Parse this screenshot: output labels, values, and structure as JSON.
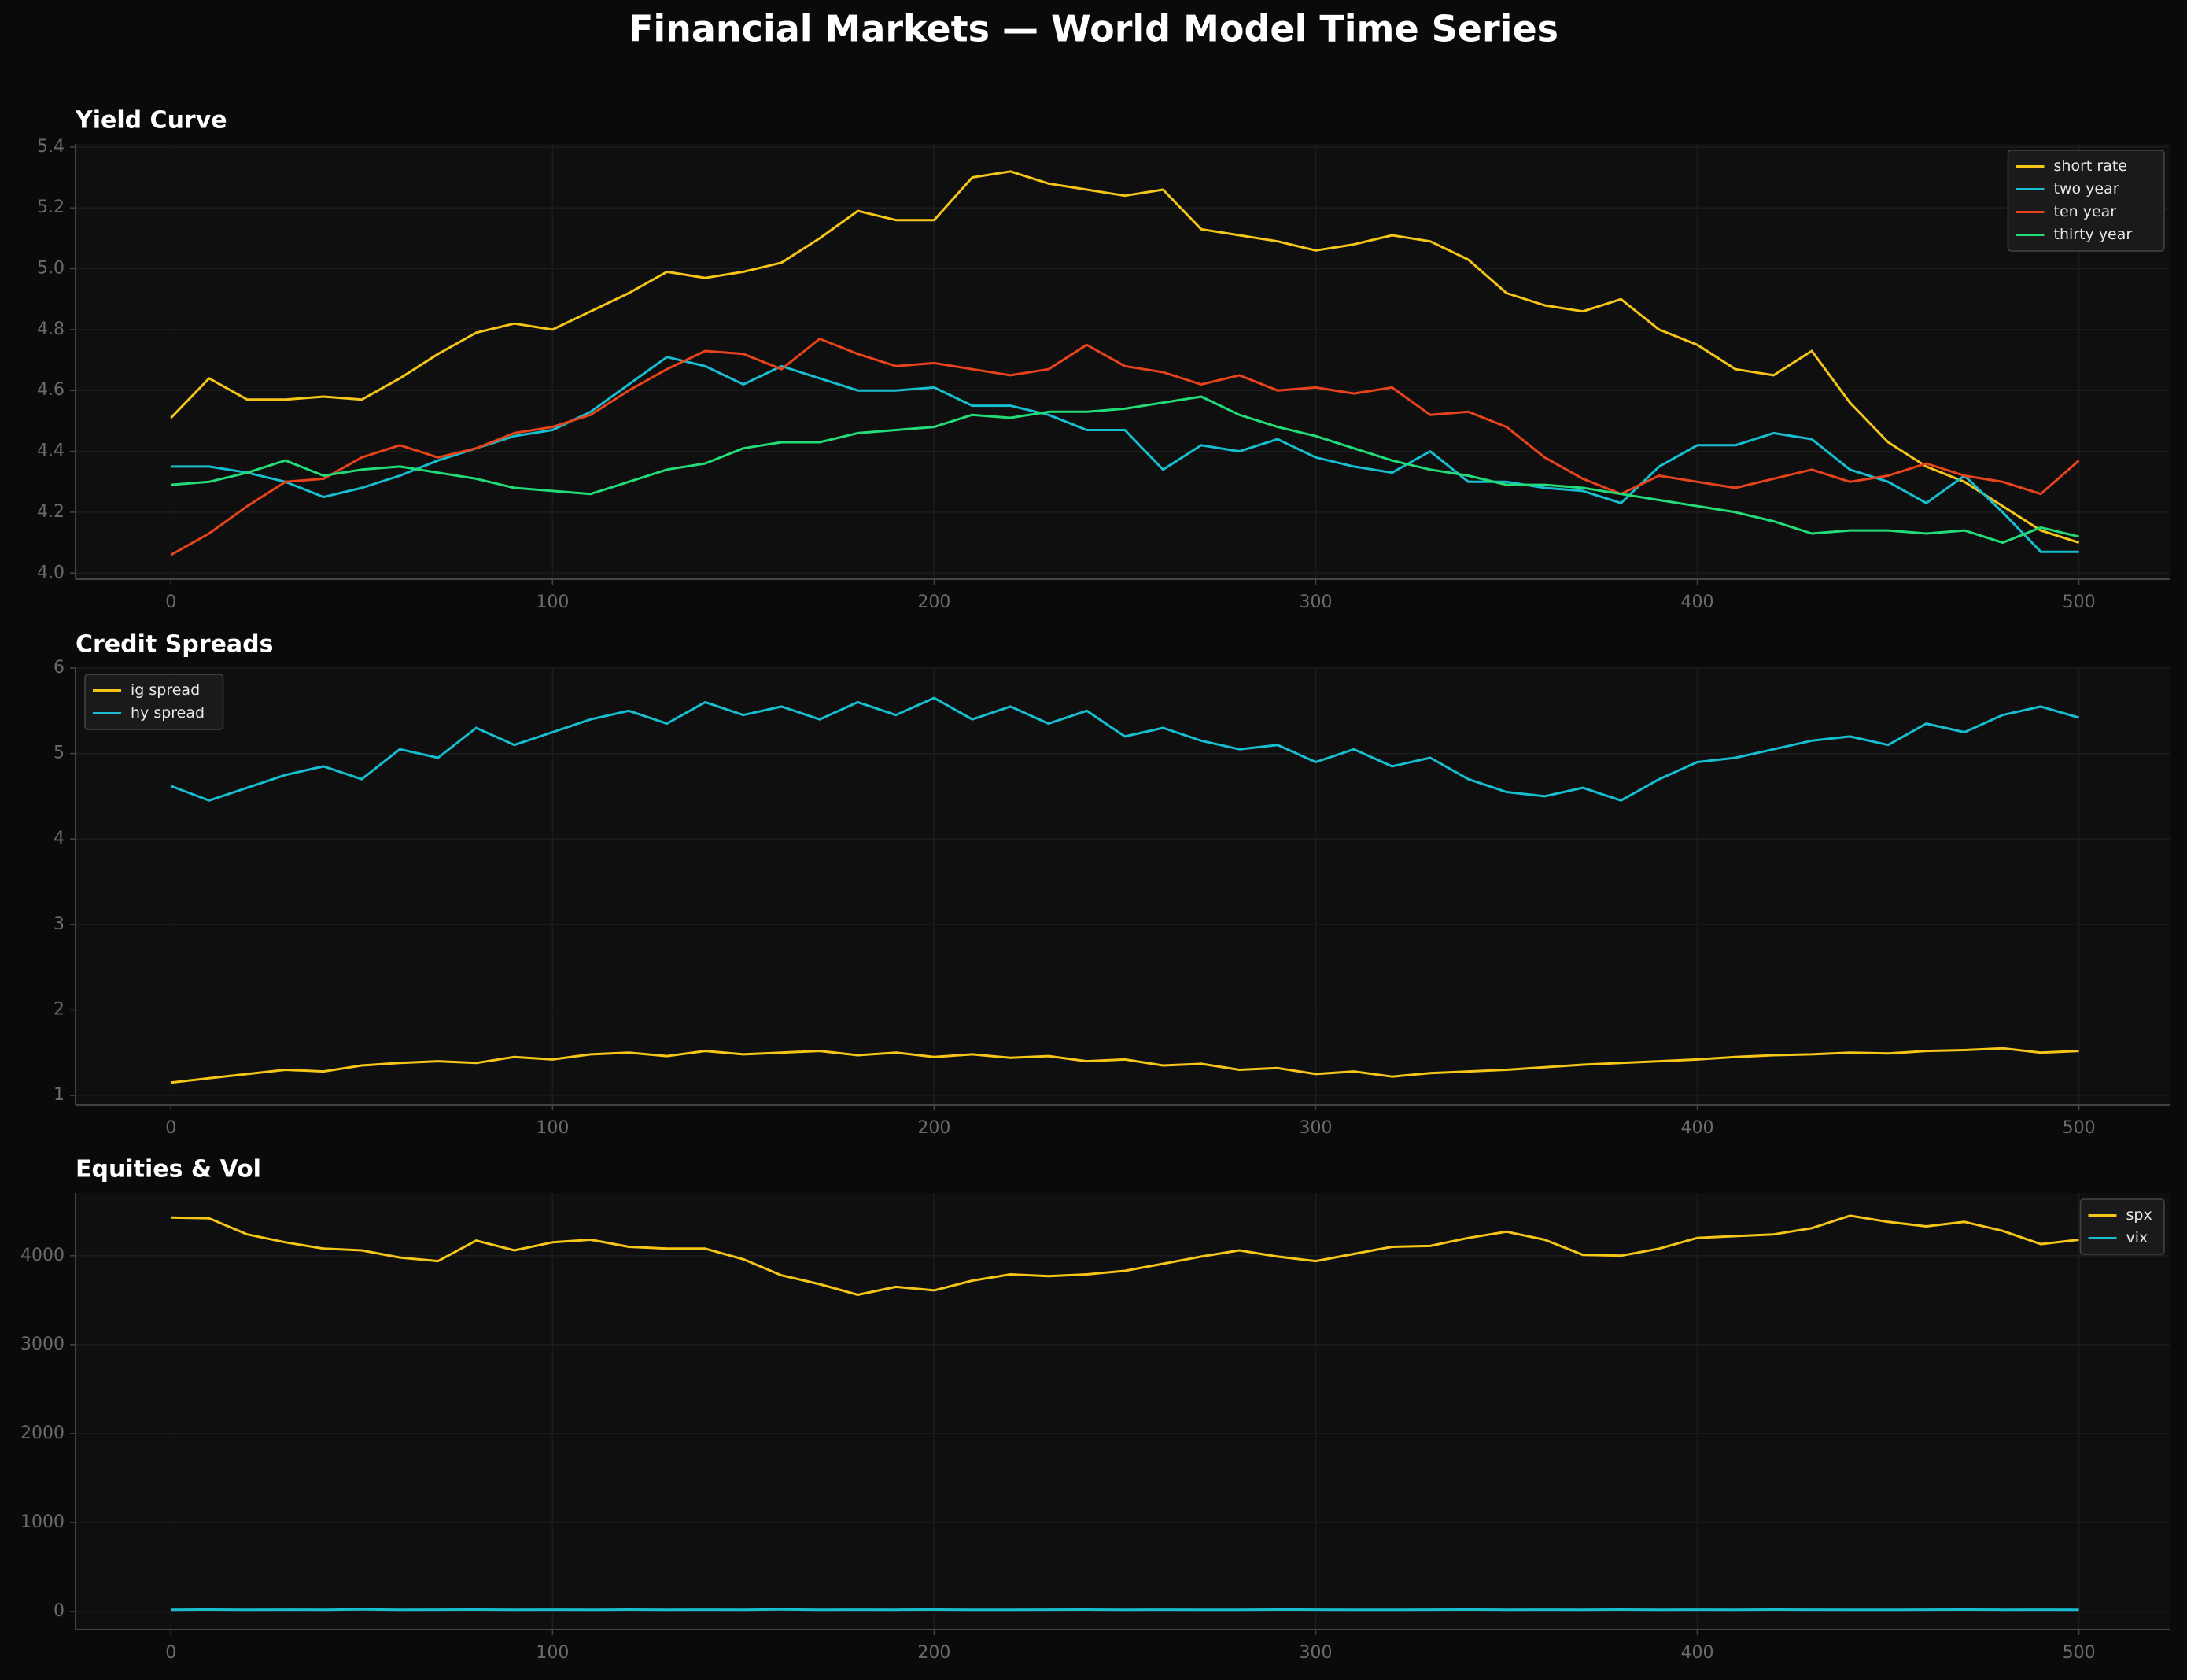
{
  "title": "Financial Markets — World Model Time Series",
  "chart_data": [
    {
      "type": "line",
      "title": "Yield Curve",
      "grid": true,
      "legend": "upper-right",
      "x": [
        0,
        10,
        20,
        30,
        40,
        50,
        60,
        70,
        80,
        90,
        100,
        110,
        120,
        130,
        140,
        150,
        160,
        170,
        180,
        190,
        200,
        210,
        220,
        230,
        240,
        250,
        260,
        270,
        280,
        290,
        300,
        310,
        320,
        330,
        340,
        350,
        360,
        370,
        380,
        390,
        400,
        410,
        420,
        430,
        440,
        450,
        460,
        470,
        480,
        490,
        500
      ],
      "xlim": [
        -25,
        524
      ],
      "xticks": [
        0,
        100,
        200,
        300,
        400,
        500
      ],
      "ylim": [
        3.98,
        5.41
      ],
      "yticks": [
        {
          "value": 4,
          "label": "4.0"
        },
        4.2,
        4.4,
        4.6,
        4.8,
        {
          "value": 5,
          "label": "5.0"
        },
        5.2,
        5.4
      ],
      "series": [
        {
          "name": "short rate",
          "color": "#f5c518",
          "values": [
            4.51,
            4.64,
            4.57,
            4.57,
            4.58,
            4.57,
            4.64,
            4.72,
            4.79,
            4.82,
            4.8,
            4.86,
            4.92,
            4.99,
            4.97,
            4.99,
            5.02,
            5.1,
            5.19,
            5.16,
            5.16,
            5.3,
            5.32,
            5.28,
            5.26,
            5.24,
            5.26,
            5.13,
            5.11,
            5.09,
            5.06,
            5.08,
            5.11,
            5.09,
            5.03,
            4.92,
            4.88,
            4.86,
            4.9,
            4.8,
            4.75,
            4.67,
            4.65,
            4.73,
            4.56,
            4.43,
            4.35,
            4.3,
            4.22,
            4.14,
            4.1
          ]
        },
        {
          "name": "two year",
          "color": "#17becf",
          "values": [
            4.35,
            4.35,
            4.33,
            4.3,
            4.25,
            4.28,
            4.32,
            4.37,
            4.41,
            4.45,
            4.47,
            4.53,
            4.62,
            4.71,
            4.68,
            4.62,
            4.68,
            4.64,
            4.6,
            4.6,
            4.61,
            4.55,
            4.55,
            4.52,
            4.47,
            4.47,
            4.34,
            4.42,
            4.4,
            4.44,
            4.38,
            4.35,
            4.33,
            4.4,
            4.3,
            4.3,
            4.28,
            4.27,
            4.23,
            4.35,
            4.42,
            4.42,
            4.46,
            4.44,
            4.34,
            4.3,
            4.23,
            4.32,
            4.2,
            4.07,
            4.07
          ]
        },
        {
          "name": "ten year",
          "color": "#e8431a",
          "values": [
            4.06,
            4.13,
            4.22,
            4.3,
            4.31,
            4.38,
            4.42,
            4.38,
            4.41,
            4.46,
            4.48,
            4.52,
            4.6,
            4.67,
            4.73,
            4.72,
            4.67,
            4.77,
            4.72,
            4.68,
            4.69,
            4.67,
            4.65,
            4.67,
            4.75,
            4.68,
            4.66,
            4.62,
            4.65,
            4.6,
            4.61,
            4.59,
            4.61,
            4.52,
            4.53,
            4.48,
            4.38,
            4.31,
            4.26,
            4.32,
            4.3,
            4.28,
            4.31,
            4.34,
            4.3,
            4.32,
            4.36,
            4.32,
            4.3,
            4.26,
            4.37
          ]
        },
        {
          "name": "thirty year",
          "color": "#22dd77",
          "values": [
            4.29,
            4.3,
            4.33,
            4.37,
            4.32,
            4.34,
            4.35,
            4.33,
            4.31,
            4.28,
            4.27,
            4.26,
            4.3,
            4.34,
            4.36,
            4.41,
            4.43,
            4.43,
            4.46,
            4.47,
            4.48,
            4.52,
            4.51,
            4.53,
            4.53,
            4.54,
            4.56,
            4.58,
            4.52,
            4.48,
            4.45,
            4.41,
            4.37,
            4.34,
            4.32,
            4.29,
            4.29,
            4.28,
            4.26,
            4.24,
            4.22,
            4.2,
            4.17,
            4.13,
            4.14,
            4.14,
            4.13,
            4.14,
            4.1,
            4.15,
            4.12
          ]
        }
      ]
    },
    {
      "type": "line",
      "title": "Credit Spreads",
      "grid": true,
      "legend": "upper-left",
      "x": [
        0,
        10,
        20,
        30,
        40,
        50,
        60,
        70,
        80,
        90,
        100,
        110,
        120,
        130,
        140,
        150,
        160,
        170,
        180,
        190,
        200,
        210,
        220,
        230,
        240,
        250,
        260,
        270,
        280,
        290,
        300,
        310,
        320,
        330,
        340,
        350,
        360,
        370,
        380,
        390,
        400,
        410,
        420,
        430,
        440,
        450,
        460,
        470,
        480,
        490,
        500
      ],
      "xlim": [
        -25,
        524
      ],
      "xticks": [
        0,
        100,
        200,
        300,
        400,
        500
      ],
      "ylim": [
        0.89,
        6
      ],
      "yticks": [
        1,
        2,
        3,
        4,
        5,
        6
      ],
      "series": [
        {
          "name": "ig spread",
          "color": "#f5c518",
          "values": [
            1.15,
            1.2,
            1.25,
            1.3,
            1.28,
            1.35,
            1.38,
            1.4,
            1.38,
            1.45,
            1.42,
            1.48,
            1.5,
            1.46,
            1.52,
            1.48,
            1.5,
            1.52,
            1.47,
            1.5,
            1.45,
            1.48,
            1.44,
            1.46,
            1.4,
            1.42,
            1.35,
            1.37,
            1.3,
            1.32,
            1.25,
            1.28,
            1.22,
            1.26,
            1.28,
            1.3,
            1.33,
            1.36,
            1.38,
            1.4,
            1.42,
            1.45,
            1.47,
            1.48,
            1.5,
            1.49,
            1.52,
            1.53,
            1.55,
            1.5,
            1.52
          ]
        },
        {
          "name": "hy spread",
          "color": "#17becf",
          "values": [
            4.62,
            4.45,
            4.6,
            4.75,
            4.85,
            4.7,
            5.05,
            4.95,
            5.3,
            5.1,
            5.25,
            5.4,
            5.5,
            5.35,
            5.6,
            5.45,
            5.55,
            5.4,
            5.6,
            5.45,
            5.65,
            5.4,
            5.55,
            5.35,
            5.5,
            5.2,
            5.3,
            5.15,
            5.05,
            5.1,
            4.9,
            5.05,
            4.85,
            4.95,
            4.7,
            4.55,
            4.5,
            4.6,
            4.45,
            4.7,
            4.9,
            4.95,
            5.05,
            5.15,
            5.2,
            5.1,
            5.35,
            5.25,
            5.45,
            5.55,
            5.42
          ]
        }
      ]
    },
    {
      "type": "line",
      "title": "Equities & Vol",
      "grid": true,
      "legend": "upper-right",
      "x": [
        0,
        10,
        20,
        30,
        40,
        50,
        60,
        70,
        80,
        90,
        100,
        110,
        120,
        130,
        140,
        150,
        160,
        170,
        180,
        190,
        200,
        210,
        220,
        230,
        240,
        250,
        260,
        270,
        280,
        290,
        300,
        310,
        320,
        330,
        340,
        350,
        360,
        370,
        380,
        390,
        400,
        410,
        420,
        430,
        440,
        450,
        460,
        470,
        480,
        490,
        500
      ],
      "xlim": [
        -25,
        524
      ],
      "xticks": [
        0,
        100,
        200,
        300,
        400,
        500
      ],
      "ylim": [
        -204,
        4706
      ],
      "yticks": [
        0,
        1000,
        2000,
        3000,
        4000
      ],
      "series": [
        {
          "name": "spx",
          "color": "#f5c518",
          "values": [
            4430,
            4420,
            4240,
            4150,
            4080,
            4060,
            3980,
            3940,
            4170,
            4060,
            4150,
            4180,
            4100,
            4080,
            4080,
            3960,
            3780,
            3680,
            3560,
            3650,
            3610,
            3720,
            3790,
            3770,
            3790,
            3830,
            3910,
            3990,
            4060,
            3990,
            3940,
            4020,
            4100,
            4110,
            4200,
            4270,
            4180,
            4010,
            4000,
            4080,
            4200,
            4220,
            4240,
            4310,
            4450,
            4380,
            4330,
            4380,
            4280,
            4130,
            4180
          ]
        },
        {
          "name": "vix",
          "color": "#17becf",
          "values": [
            20,
            22,
            19,
            21,
            20,
            23,
            19,
            21,
            22,
            20,
            21,
            19,
            22,
            20,
            21,
            20,
            23,
            19,
            21,
            20,
            22,
            20,
            19,
            21,
            22,
            20,
            21,
            19,
            20,
            22,
            21,
            20,
            19,
            21,
            22,
            20,
            21,
            20,
            22,
            19,
            21,
            20,
            22,
            21,
            20,
            19,
            21,
            22,
            20,
            21,
            20
          ]
        }
      ]
    }
  ]
}
